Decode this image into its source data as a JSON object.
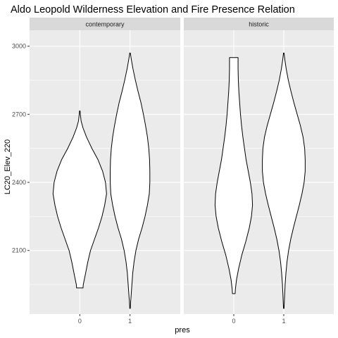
{
  "chart_data": {
    "type": "violin",
    "title": "Aldo Leopold Wilderness Elevation and Fire Presence Relation",
    "xlabel": "pres",
    "ylabel": "LC20_Elev_220",
    "categories": [
      "0",
      "1"
    ],
    "y_ticks": [
      2100,
      2400,
      2700,
      3000
    ],
    "ylim": [
      1820,
      3070
    ],
    "grid": true,
    "panels": [
      {
        "label": "contemporary",
        "violins": [
          {
            "x": "0",
            "min": 1935,
            "max": 2715,
            "profile": [
              [
                1935,
                0.12
              ],
              [
                1950,
                0.13
              ],
              [
                1990,
                0.2
              ],
              [
                2050,
                0.3
              ],
              [
                2100,
                0.4
              ],
              [
                2150,
                0.55
              ],
              [
                2200,
                0.7
              ],
              [
                2250,
                0.83
              ],
              [
                2300,
                0.93
              ],
              [
                2350,
                1.0
              ],
              [
                2400,
                0.96
              ],
              [
                2450,
                0.85
              ],
              [
                2500,
                0.68
              ],
              [
                2550,
                0.45
              ],
              [
                2600,
                0.25
              ],
              [
                2640,
                0.12
              ],
              [
                2670,
                0.05
              ],
              [
                2700,
                0.02
              ],
              [
                2715,
                0.01
              ]
            ]
          },
          {
            "x": "1",
            "min": 1845,
            "max": 2970,
            "profile": [
              [
                1845,
                0.01
              ],
              [
                1870,
                0.02
              ],
              [
                1900,
                0.04
              ],
              [
                1950,
                0.07
              ],
              [
                2000,
                0.1
              ],
              [
                2050,
                0.15
              ],
              [
                2100,
                0.22
              ],
              [
                2150,
                0.32
              ],
              [
                2200,
                0.45
              ],
              [
                2250,
                0.56
              ],
              [
                2300,
                0.65
              ],
              [
                2350,
                0.72
              ],
              [
                2400,
                0.74
              ],
              [
                2450,
                0.74
              ],
              [
                2500,
                0.73
              ],
              [
                2550,
                0.7
              ],
              [
                2600,
                0.65
              ],
              [
                2650,
                0.58
              ],
              [
                2700,
                0.5
              ],
              [
                2750,
                0.41
              ],
              [
                2800,
                0.3
              ],
              [
                2850,
                0.2
              ],
              [
                2900,
                0.11
              ],
              [
                2940,
                0.05
              ],
              [
                2970,
                0.01
              ]
            ]
          }
        ]
      },
      {
        "label": "historic",
        "violins": [
          {
            "x": "0",
            "min": 1910,
            "max": 2950,
            "profile": [
              [
                1910,
                0.05
              ],
              [
                1930,
                0.06
              ],
              [
                1970,
                0.1
              ],
              [
                2020,
                0.18
              ],
              [
                2080,
                0.3
              ],
              [
                2140,
                0.45
              ],
              [
                2200,
                0.58
              ],
              [
                2250,
                0.66
              ],
              [
                2300,
                0.7
              ],
              [
                2350,
                0.68
              ],
              [
                2400,
                0.62
              ],
              [
                2450,
                0.54
              ],
              [
                2500,
                0.46
              ],
              [
                2550,
                0.4
              ],
              [
                2600,
                0.34
              ],
              [
                2650,
                0.29
              ],
              [
                2700,
                0.25
              ],
              [
                2750,
                0.22
              ],
              [
                2800,
                0.19
              ],
              [
                2850,
                0.17
              ],
              [
                2900,
                0.16
              ],
              [
                2930,
                0.16
              ],
              [
                2950,
                0.16
              ]
            ]
          },
          {
            "x": "1",
            "min": 1845,
            "max": 2970,
            "profile": [
              [
                1845,
                0.01
              ],
              [
                1870,
                0.02
              ],
              [
                1900,
                0.03
              ],
              [
                1950,
                0.05
              ],
              [
                2000,
                0.08
              ],
              [
                2050,
                0.12
              ],
              [
                2100,
                0.18
              ],
              [
                2150,
                0.26
              ],
              [
                2200,
                0.36
              ],
              [
                2250,
                0.47
              ],
              [
                2300,
                0.58
              ],
              [
                2350,
                0.68
              ],
              [
                2400,
                0.76
              ],
              [
                2450,
                0.8
              ],
              [
                2500,
                0.8
              ],
              [
                2550,
                0.78
              ],
              [
                2600,
                0.72
              ],
              [
                2650,
                0.62
              ],
              [
                2700,
                0.5
              ],
              [
                2750,
                0.38
              ],
              [
                2800,
                0.27
              ],
              [
                2850,
                0.17
              ],
              [
                2900,
                0.09
              ],
              [
                2940,
                0.04
              ],
              [
                2970,
                0.01
              ]
            ]
          }
        ]
      }
    ]
  }
}
